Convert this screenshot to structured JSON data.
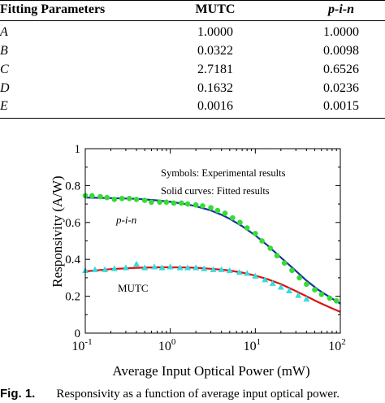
{
  "table": {
    "headers": [
      "Fitting Parameters",
      "MUTC",
      "p-i-n"
    ],
    "rows": [
      {
        "param": "A",
        "mutc": "1.0000",
        "pin": "1.0000"
      },
      {
        "param": "B",
        "mutc": "0.0322",
        "pin": "0.0098"
      },
      {
        "param": "C",
        "mutc": "2.7181",
        "pin": "0.6526"
      },
      {
        "param": "D",
        "mutc": "0.1632",
        "pin": "0.0236"
      },
      {
        "param": "E",
        "mutc": "0.0016",
        "pin": "0.0015"
      }
    ]
  },
  "chart_data": {
    "type": "scatter",
    "xlabel": "Average Input Optical Power (mW)",
    "ylabel": "Responsivity (A/W)",
    "xscale": "log",
    "xlim": [
      0.1,
      100
    ],
    "ylim": [
      0,
      1
    ],
    "x_ticks": [
      0.1,
      1,
      10,
      100
    ],
    "x_tick_labels": [
      "10-1",
      "100",
      "101",
      "102"
    ],
    "y_ticks": [
      0,
      0.2,
      0.4,
      0.6,
      0.8,
      1
    ],
    "y_tick_labels": [
      "0",
      "0.2",
      "0.4",
      "0.6",
      "0.8",
      "1"
    ],
    "annotations": [
      "Symbols: Experimental results",
      "Solid curves: Fitted results"
    ],
    "series": [
      {
        "name": "p-i-n",
        "kind": "points",
        "marker": "circle",
        "color": "#33dd33",
        "x": [
          0.1,
          0.12,
          0.15,
          0.18,
          0.22,
          0.27,
          0.33,
          0.4,
          0.5,
          0.6,
          0.75,
          0.9,
          1.1,
          1.35,
          1.6,
          2.0,
          2.4,
          3.0,
          3.6,
          4.4,
          5.4,
          6.6,
          8.0,
          10,
          12,
          15,
          18,
          22,
          27,
          33,
          40,
          50,
          60,
          75,
          90
        ],
        "y": [
          0.745,
          0.745,
          0.74,
          0.735,
          0.725,
          0.73,
          0.73,
          0.725,
          0.72,
          0.71,
          0.71,
          0.71,
          0.705,
          0.705,
          0.7,
          0.695,
          0.69,
          0.68,
          0.665,
          0.65,
          0.625,
          0.6,
          0.57,
          0.54,
          0.5,
          0.46,
          0.42,
          0.38,
          0.34,
          0.3,
          0.265,
          0.235,
          0.21,
          0.19,
          0.175
        ]
      },
      {
        "name": "MUTC",
        "kind": "points",
        "marker": "triangle",
        "color": "#33dddd",
        "x": [
          0.1,
          0.13,
          0.17,
          0.22,
          0.3,
          0.4,
          0.5,
          0.65,
          0.8,
          1.0,
          1.3,
          1.6,
          2.0,
          2.5,
          3.2,
          4.0,
          5.0,
          6.5,
          8.0,
          10,
          13,
          16,
          20,
          25,
          32,
          40
        ],
        "y": [
          0.34,
          0.345,
          0.345,
          0.35,
          0.355,
          0.375,
          0.355,
          0.36,
          0.355,
          0.36,
          0.355,
          0.355,
          0.355,
          0.35,
          0.345,
          0.345,
          0.34,
          0.33,
          0.325,
          0.31,
          0.29,
          0.27,
          0.25,
          0.23,
          0.205,
          0.185
        ]
      },
      {
        "name": "p-i-n fit",
        "kind": "line",
        "color": "#1a2fa0",
        "x": [
          0.1,
          0.2,
          0.4,
          0.7,
          1,
          1.5,
          2,
          3,
          4,
          5,
          7,
          10,
          14,
          20,
          28,
          40,
          55,
          75,
          100
        ],
        "y": [
          0.735,
          0.732,
          0.728,
          0.72,
          0.712,
          0.7,
          0.688,
          0.665,
          0.642,
          0.62,
          0.58,
          0.53,
          0.475,
          0.41,
          0.35,
          0.285,
          0.235,
          0.195,
          0.16
        ]
      },
      {
        "name": "MUTC fit",
        "kind": "line",
        "color": "#dd1111",
        "x": [
          0.1,
          0.2,
          0.4,
          0.7,
          1,
          1.5,
          2,
          3,
          4,
          5,
          7,
          10,
          14,
          20,
          28,
          40,
          55,
          75,
          100
        ],
        "y": [
          0.335,
          0.347,
          0.354,
          0.357,
          0.357,
          0.356,
          0.354,
          0.349,
          0.344,
          0.339,
          0.328,
          0.312,
          0.292,
          0.266,
          0.235,
          0.2,
          0.168,
          0.14,
          0.115
        ]
      }
    ],
    "series_labels": [
      "p-i-n",
      "MUTC"
    ]
  },
  "caption": {
    "label": "Fig. 1.",
    "text": "Responsivity as a function of average input optical power."
  }
}
